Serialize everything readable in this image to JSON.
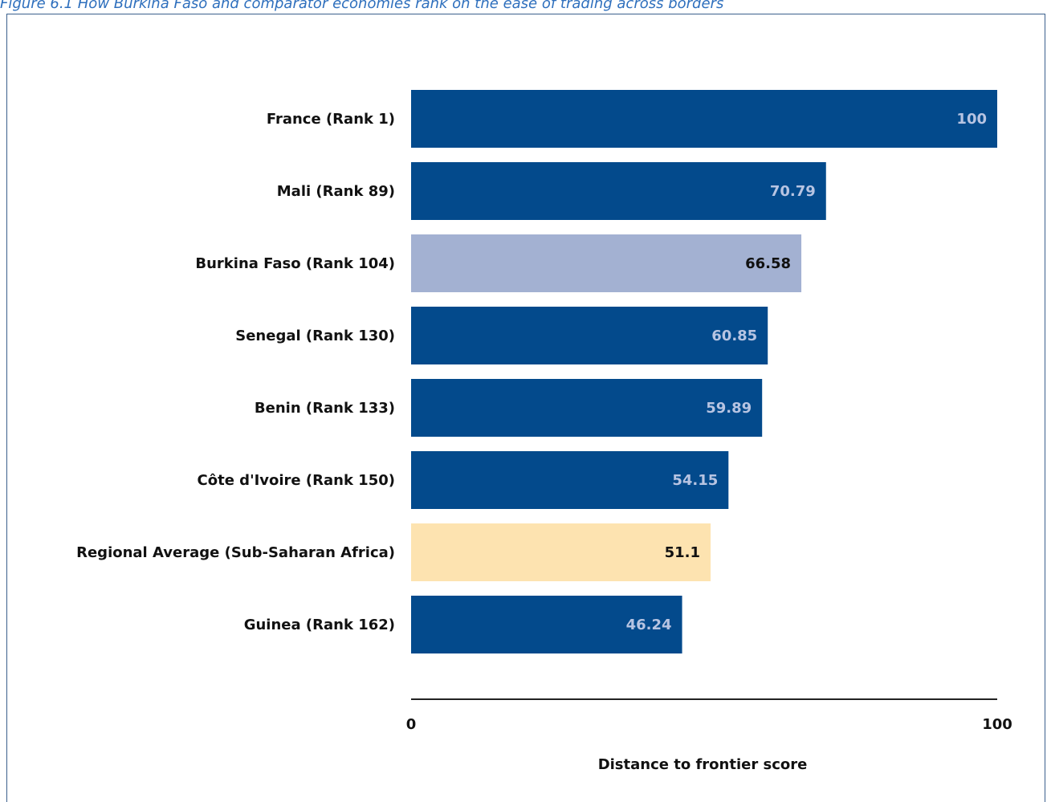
{
  "figure": {
    "title": "Figure 6.1 How Burkina Faso and comparator economies rank on the ease of trading across borders"
  },
  "colors": {
    "default_bar": "#034a8c",
    "highlight_bar": "#a3b1d2",
    "average_bar": "#fde3b0",
    "value_on_dark": "#b7c4e2",
    "value_on_light": "#111111",
    "axis_line": "#222222",
    "title": "#2e6fbd",
    "frame": "#3b5f8c"
  },
  "chart_data": {
    "type": "bar",
    "orientation": "horizontal",
    "categories": [
      "France (Rank 1)",
      "Mali (Rank 89)",
      "Burkina Faso (Rank 104)",
      "Senegal (Rank 130)",
      "Benin (Rank 133)",
      "Côte d'Ivoire (Rank 150)",
      "Regional Average (Sub-Saharan Africa)",
      "Guinea (Rank 162)"
    ],
    "values": [
      100,
      70.79,
      66.58,
      60.85,
      59.89,
      54.15,
      51.1,
      46.24
    ],
    "value_labels": [
      "100",
      "70.79",
      "66.58",
      "60.85",
      "59.89",
      "54.15",
      "51.1",
      "46.24"
    ],
    "bar_styles": [
      "default",
      "default",
      "highlight",
      "default",
      "default",
      "default",
      "average",
      "default"
    ],
    "xlabel": "Distance to frontier score",
    "ylabel": "",
    "xlim": [
      0,
      100
    ],
    "xticks": [
      "0",
      "100"
    ],
    "grid": false,
    "legend": "none"
  }
}
